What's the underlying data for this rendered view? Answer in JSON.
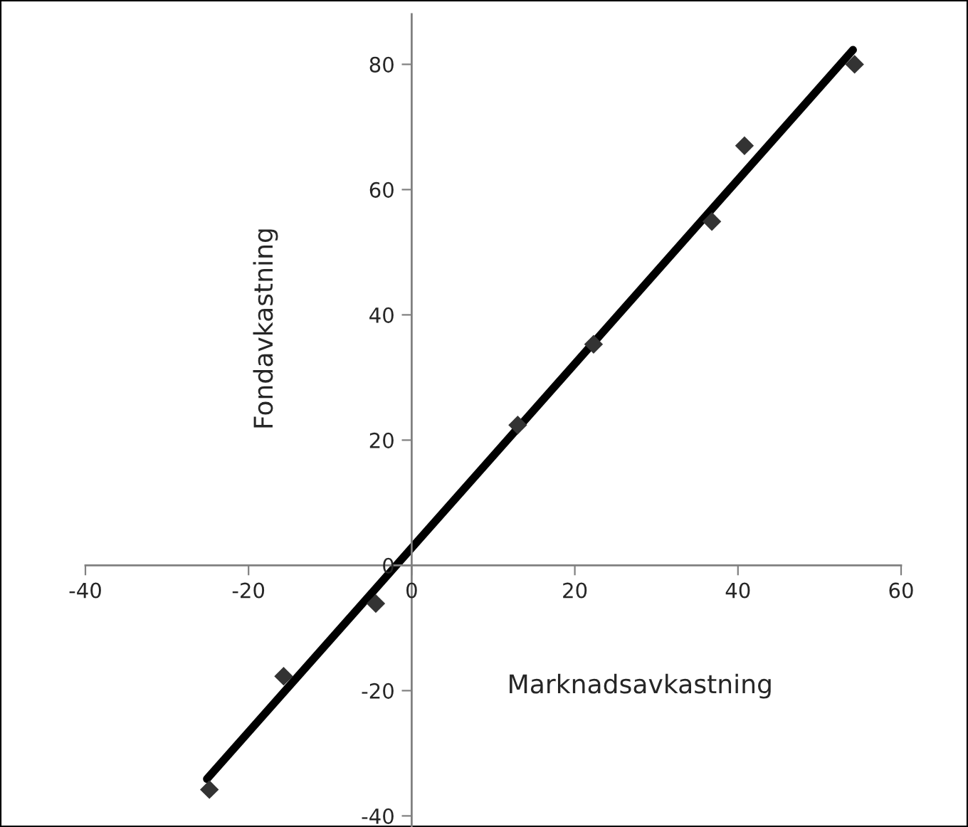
{
  "chart_data": {
    "type": "scatter",
    "xlabel": "Marknadsavkastning",
    "ylabel": "Fondavkastning",
    "xlim": [
      -40,
      60
    ],
    "ylim": [
      -42,
      88
    ],
    "xticks": [
      -40,
      -20,
      0,
      20,
      40,
      60
    ],
    "yticks": [
      -40,
      -20,
      0,
      20,
      40,
      60,
      80
    ],
    "grid": false,
    "legend": false,
    "marker": "diamond",
    "series": [
      {
        "type": "scatter",
        "color": "#333333",
        "x": [
          -24.8,
          -15.7,
          -4.4,
          13,
          22.3,
          36.8,
          40.8,
          54.3
        ],
        "values": [
          -35.8,
          -17.7,
          -6.1,
          22.4,
          35.3,
          54.9,
          67,
          80
        ]
      },
      {
        "type": "line",
        "color": "#000000",
        "marker": "none",
        "line_style": "solid",
        "x": [
          -25.1,
          54.1
        ],
        "values": [
          -34.1,
          82.3
        ]
      }
    ]
  }
}
